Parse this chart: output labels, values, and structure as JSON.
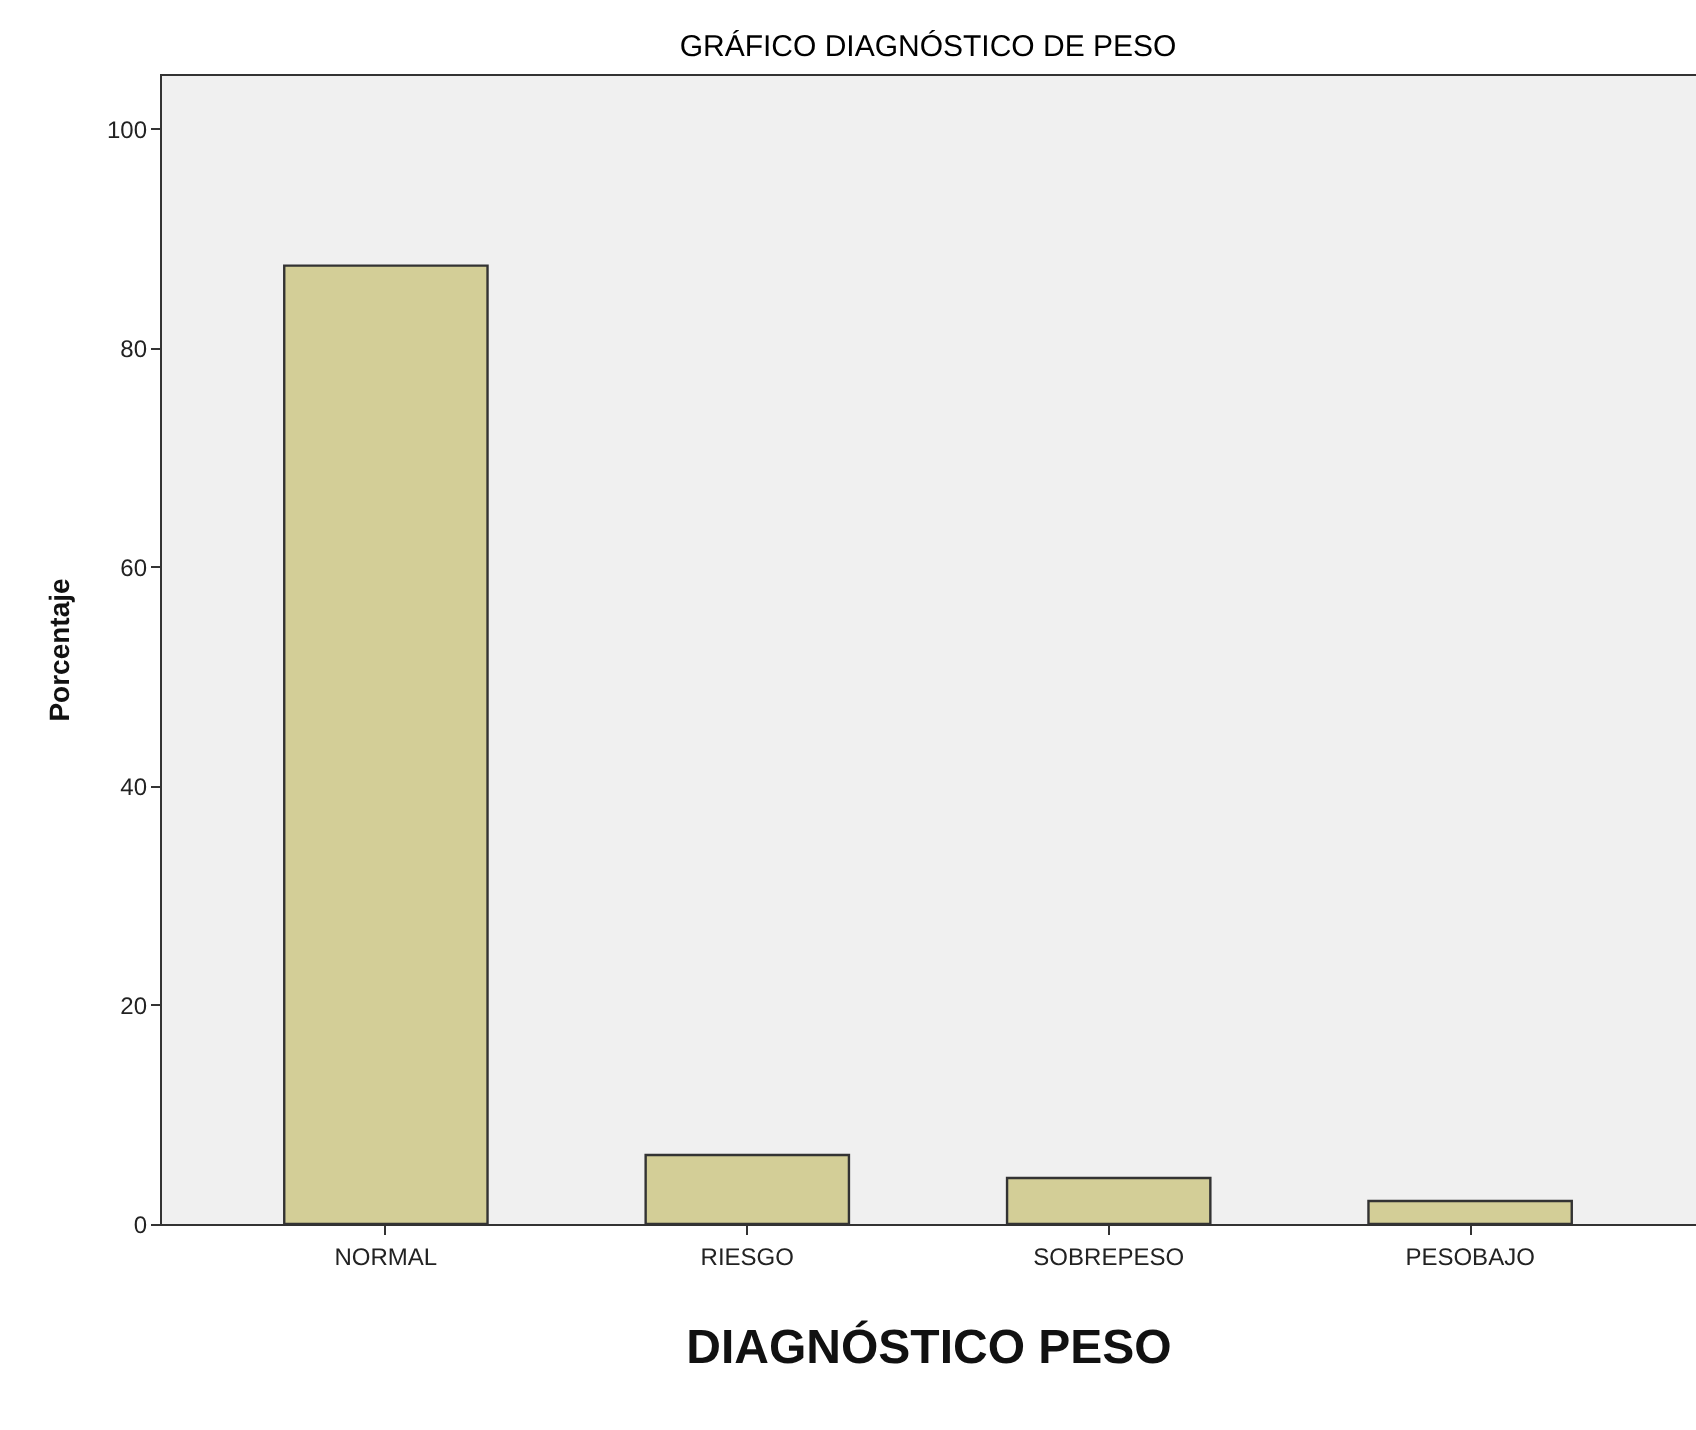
{
  "chart_data": {
    "type": "bar",
    "title": "GRÁFICO DIAGNÓSTICO DE PESO",
    "xlabel": "DIAGNÓSTICO PESO",
    "ylabel": "Porcentaje",
    "categories": [
      "NORMAL",
      "RIESGO",
      "SOBREPESO",
      "PESOBAJO"
    ],
    "values": [
      87.5,
      6.3,
      4.2,
      2.1
    ],
    "color": "#d3ce97",
    "ylim": [
      0,
      105
    ],
    "yticks": [
      0,
      20,
      40,
      60,
      80,
      100
    ],
    "grid": false
  }
}
